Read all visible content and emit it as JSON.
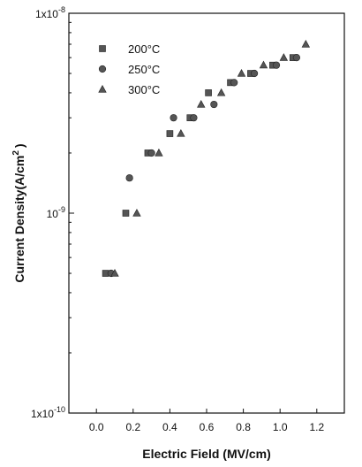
{
  "chart_data": {
    "type": "scatter",
    "xlabel": "Electric Field (MV/cm)",
    "ylabel_parts": {
      "main": "Current Density(A/cm",
      "sup": "2",
      "close": ")"
    },
    "xlim": [
      -0.15,
      1.35
    ],
    "ylim": [
      1e-10,
      1e-08
    ],
    "yscale": "log",
    "x_ticks": [
      {
        "value": 0.0,
        "label": "0.0"
      },
      {
        "value": 0.2,
        "label": "0.2"
      },
      {
        "value": 0.4,
        "label": "0.4"
      },
      {
        "value": 0.6,
        "label": "0.6"
      },
      {
        "value": 0.8,
        "label": "0.8"
      },
      {
        "value": 1.0,
        "label": "1.0"
      },
      {
        "value": 1.2,
        "label": "1.2"
      }
    ],
    "y_ticks": [
      {
        "value": 1e-10,
        "base": "1x10",
        "exp": "-10"
      },
      {
        "value": 1e-09,
        "base": "10",
        "exp": "-9"
      },
      {
        "value": 1e-08,
        "base": "1x10",
        "exp": "-8"
      }
    ],
    "grid": false,
    "legend_position": "top-left",
    "series": [
      {
        "name": "200°C",
        "marker": "square",
        "color": "#555555",
        "points": [
          {
            "x": 0.05,
            "y": 5e-10
          },
          {
            "x": 0.16,
            "y": 1e-09
          },
          {
            "x": 0.28,
            "y": 2e-09
          },
          {
            "x": 0.4,
            "y": 2.5e-09
          },
          {
            "x": 0.51,
            "y": 3e-09
          },
          {
            "x": 0.61,
            "y": 4e-09
          },
          {
            "x": 0.73,
            "y": 4.5e-09
          },
          {
            "x": 0.84,
            "y": 5e-09
          },
          {
            "x": 0.96,
            "y": 5.5e-09
          },
          {
            "x": 1.07,
            "y": 6e-09
          }
        ]
      },
      {
        "name": "250°C",
        "marker": "circle",
        "color": "#555555",
        "points": [
          {
            "x": 0.08,
            "y": 5e-10
          },
          {
            "x": 0.18,
            "y": 1.5e-09
          },
          {
            "x": 0.3,
            "y": 2e-09
          },
          {
            "x": 0.42,
            "y": 3e-09
          },
          {
            "x": 0.53,
            "y": 3e-09
          },
          {
            "x": 0.64,
            "y": 3.5e-09
          },
          {
            "x": 0.75,
            "y": 4.5e-09
          },
          {
            "x": 0.86,
            "y": 5e-09
          },
          {
            "x": 0.98,
            "y": 5.5e-09
          },
          {
            "x": 1.09,
            "y": 6e-09
          }
        ]
      },
      {
        "name": "300°C",
        "marker": "triangle",
        "color": "#555555",
        "points": [
          {
            "x": 0.1,
            "y": 5e-10
          },
          {
            "x": 0.22,
            "y": 1e-09
          },
          {
            "x": 0.34,
            "y": 2e-09
          },
          {
            "x": 0.46,
            "y": 2.5e-09
          },
          {
            "x": 0.57,
            "y": 3.5e-09
          },
          {
            "x": 0.68,
            "y": 4e-09
          },
          {
            "x": 0.79,
            "y": 5e-09
          },
          {
            "x": 0.91,
            "y": 5.5e-09
          },
          {
            "x": 1.02,
            "y": 6e-09
          },
          {
            "x": 1.14,
            "y": 7e-09
          }
        ]
      }
    ]
  }
}
